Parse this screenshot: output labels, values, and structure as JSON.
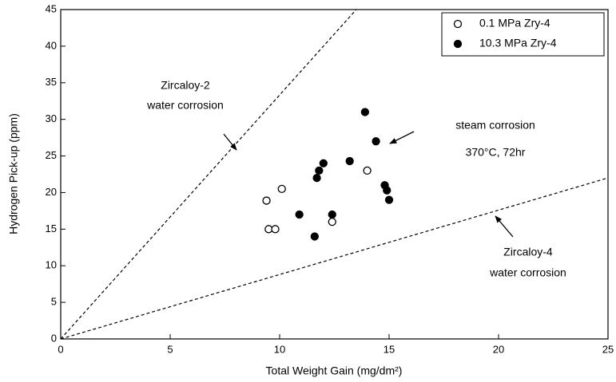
{
  "chart_data": {
    "type": "scatter",
    "xlabel": "Total Weight Gain (mg/dm²)",
    "ylabel": "Hydrogen Pick-up (ppm)",
    "xlim": [
      0,
      25
    ],
    "ylim": [
      0,
      45
    ],
    "xticks": [
      0,
      5,
      10,
      15,
      20,
      25
    ],
    "yticks": [
      0,
      5,
      10,
      15,
      20,
      25,
      30,
      35,
      40,
      45
    ],
    "legend": "upper right",
    "series": [
      {
        "name": "0.1 MPa Zry-4",
        "color": "#000000",
        "marker": "open",
        "x": [
          9.4,
          9.5,
          9.8,
          10.1,
          12.4,
          14.0
        ],
        "values": [
          18.9,
          15.0,
          15.0,
          20.5,
          16.0,
          23.0
        ]
      },
      {
        "name": "10.3 MPa Zry-4",
        "color": "#000000",
        "marker": "filled",
        "x": [
          10.9,
          11.6,
          11.7,
          11.8,
          12.0,
          12.4,
          13.2,
          13.9,
          14.4,
          14.8,
          14.9,
          15.0
        ],
        "values": [
          17.0,
          14.0,
          22.0,
          23.0,
          24.0,
          17.0,
          24.3,
          31.0,
          27.0,
          21.0,
          20.3,
          19.0
        ]
      }
    ],
    "reference_lines": [
      {
        "x": [
          0,
          13.5
        ],
        "values": [
          0,
          45
        ]
      },
      {
        "x": [
          0,
          25
        ],
        "values": [
          0,
          22
        ]
      }
    ],
    "annotations": [
      "Zircaloy-2",
      "water corrosion",
      "steam corrosion",
      "370°C, 72hr",
      "Zircaloy-4",
      "water corrosion"
    ]
  }
}
